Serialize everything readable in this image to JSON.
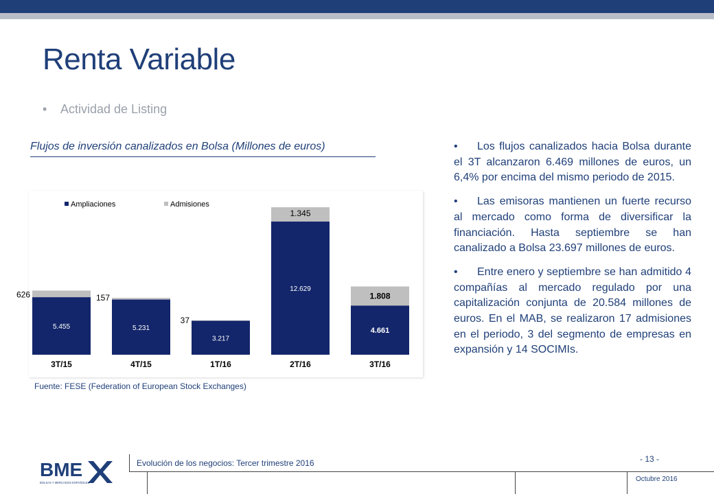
{
  "header": {
    "title": "Renta Variable",
    "subtitle_bullet": "•",
    "subtitle": "Actividad de Listing"
  },
  "chart_heading": "Flujos de inversión canalizados en Bolsa (Millones de euros)",
  "chart_data": {
    "type": "bar",
    "stacked": true,
    "categories": [
      "3T/15",
      "4T/15",
      "1T/16",
      "2T/16",
      "3T/16"
    ],
    "series": [
      {
        "name": "Ampliaciones",
        "values": [
          5455,
          5231,
          3217,
          12629,
          4661
        ],
        "labels": [
          "5.455",
          "5.231",
          "3.217",
          "12.629",
          "4.661"
        ],
        "color": "#13266b"
      },
      {
        "name": "Admisiones",
        "values": [
          626,
          157,
          37,
          1345,
          1808
        ],
        "labels": [
          "626",
          "157",
          "37",
          "1.345",
          "1.808"
        ],
        "color": "#bfbfbf"
      }
    ],
    "ylim": [
      0,
      14500
    ],
    "legend": "top-left",
    "grid": false
  },
  "source": "Fuente: FESE (Federation of European Stock Exchanges)",
  "bullets": [
    {
      "dot": "•",
      "text": "Los flujos canalizados hacia Bolsa durante el 3T alcanzaron 6.469 millones de euros, un 6,4% por encima del mismo periodo de 2015."
    },
    {
      "dot": "•",
      "text": "Las emisoras mantienen un fuerte recurso al mercado como forma de diversificar la financiación. Hasta septiembre se han canalizado a Bolsa 23.697 millones de euros."
    },
    {
      "dot": "•",
      "text": "Entre enero y septiembre se han admitido 4 compañías al mercado regulado por una capitalización conjunta de 20.584 millones de euros. En el MAB, se realizaron 17 admisiones en el periodo, 3 del segmento de empresas en expansión y 14 SOCIMIs."
    }
  ],
  "footer": {
    "text": "Evolución de los negocios: Tercer trimestre 2016",
    "page": "- 13 -",
    "date": "Octubre 2016",
    "logo_text": "BME",
    "logo_subtext": "BOLSAS Y MERCADOS ESPAÑOLES"
  },
  "colors": {
    "brand": "#1f3f78",
    "bar_dark": "#13266b",
    "bar_light": "#bfbfbf",
    "subtitle_grey": "#9aa1ab"
  }
}
